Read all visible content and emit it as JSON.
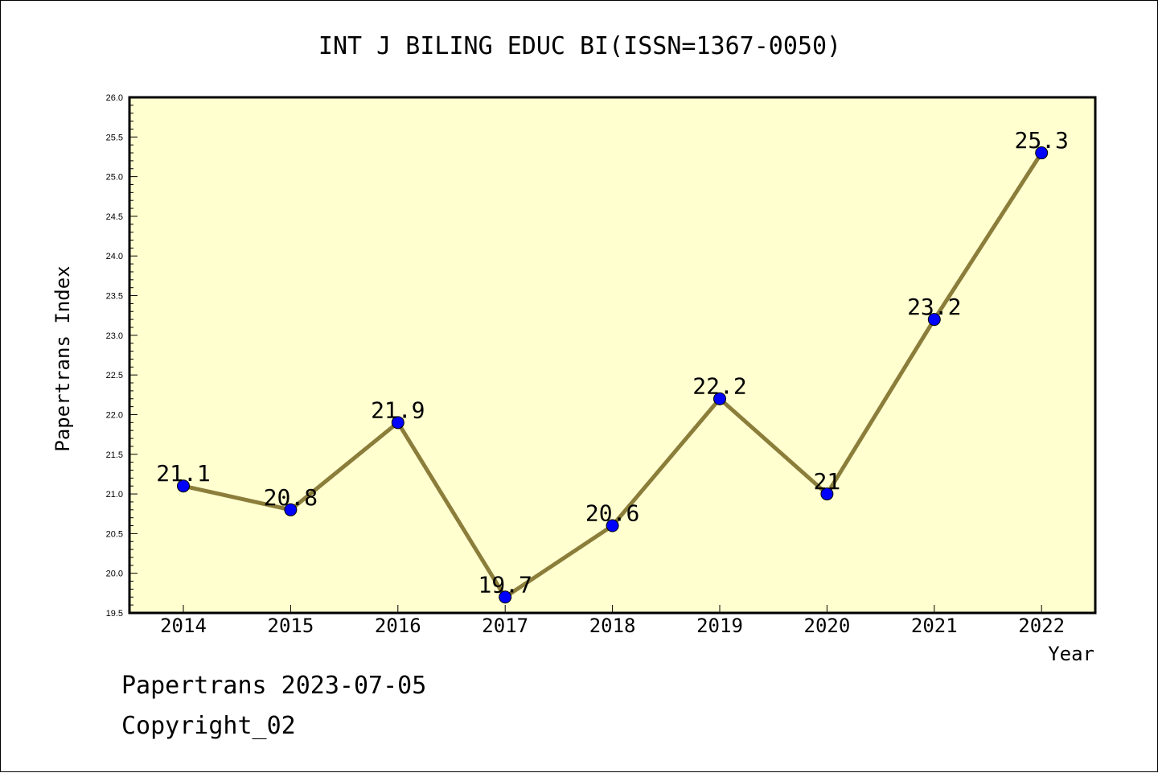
{
  "chart_data": {
    "type": "line",
    "title": "INT J BILING EDUC BI(ISSN=1367-0050)",
    "xlabel": "Year",
    "ylabel": "Papertrans Index",
    "x": [
      "2014",
      "2015",
      "2016",
      "2017",
      "2018",
      "2019",
      "2020",
      "2021",
      "2022"
    ],
    "series": [
      {
        "values": [
          21.1,
          20.8,
          21.9,
          19.7,
          20.6,
          22.2,
          21.0,
          23.2,
          25.3
        ],
        "labels": [
          "21.1",
          "20.8",
          "21.9",
          "19.7",
          "20.6",
          "22.2",
          "21",
          "23.2",
          "25.3"
        ],
        "color": "#8b7d3a",
        "marker_color": "#0000ff"
      }
    ],
    "ylim": [
      19.5,
      26.0
    ],
    "yticks": [
      "19.5",
      "20.0",
      "20.5",
      "21.0",
      "21.5",
      "22.0",
      "22.5",
      "23.0",
      "23.5",
      "24.0",
      "24.5",
      "25.0",
      "25.5",
      "26.0"
    ],
    "plot_background": "#ffffd0",
    "grid": false,
    "legend": "none"
  },
  "footer": {
    "line1": "Papertrans 2023-07-05",
    "line2": "Copyright_02"
  }
}
